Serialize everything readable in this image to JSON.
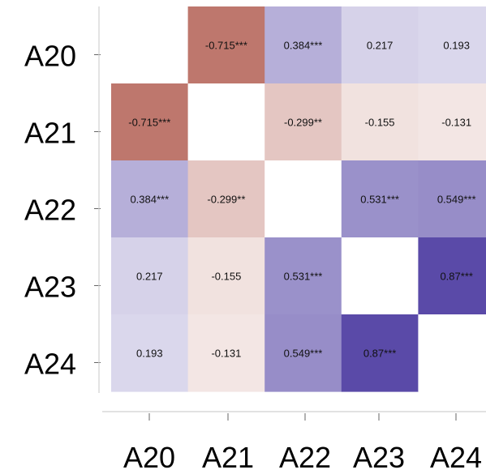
{
  "chart_data": {
    "type": "heatmap",
    "title": "",
    "xlabel": "",
    "ylabel": "",
    "row_labels": [
      "A20",
      "A21",
      "A22",
      "A23",
      "A24"
    ],
    "col_labels": [
      "A20",
      "A21",
      "A22",
      "A23",
      "A24"
    ],
    "values": [
      [
        null,
        -0.715,
        0.384,
        0.217,
        0.193
      ],
      [
        -0.715,
        null,
        -0.299,
        -0.155,
        -0.131
      ],
      [
        0.384,
        -0.299,
        null,
        0.531,
        0.549
      ],
      [
        0.217,
        -0.155,
        0.531,
        null,
        0.87
      ],
      [
        0.193,
        -0.131,
        0.549,
        0.87,
        null
      ]
    ],
    "cell_labels": [
      [
        "",
        "-0.715***",
        "0.384***",
        "0.217",
        "0.193"
      ],
      [
        "-0.715***",
        "",
        "-0.299**",
        "-0.155",
        "-0.131"
      ],
      [
        "0.384***",
        "-0.299**",
        "",
        "0.531***",
        "0.549***"
      ],
      [
        "0.217",
        "-0.155",
        "0.531***",
        "",
        "0.87***"
      ],
      [
        "0.193",
        "-0.131",
        "0.549***",
        "0.87***",
        ""
      ]
    ],
    "color_scale": {
      "negative": "#b05a4d",
      "zero": "#ffffff",
      "positive": "#5a4aa8"
    },
    "grid": false
  }
}
